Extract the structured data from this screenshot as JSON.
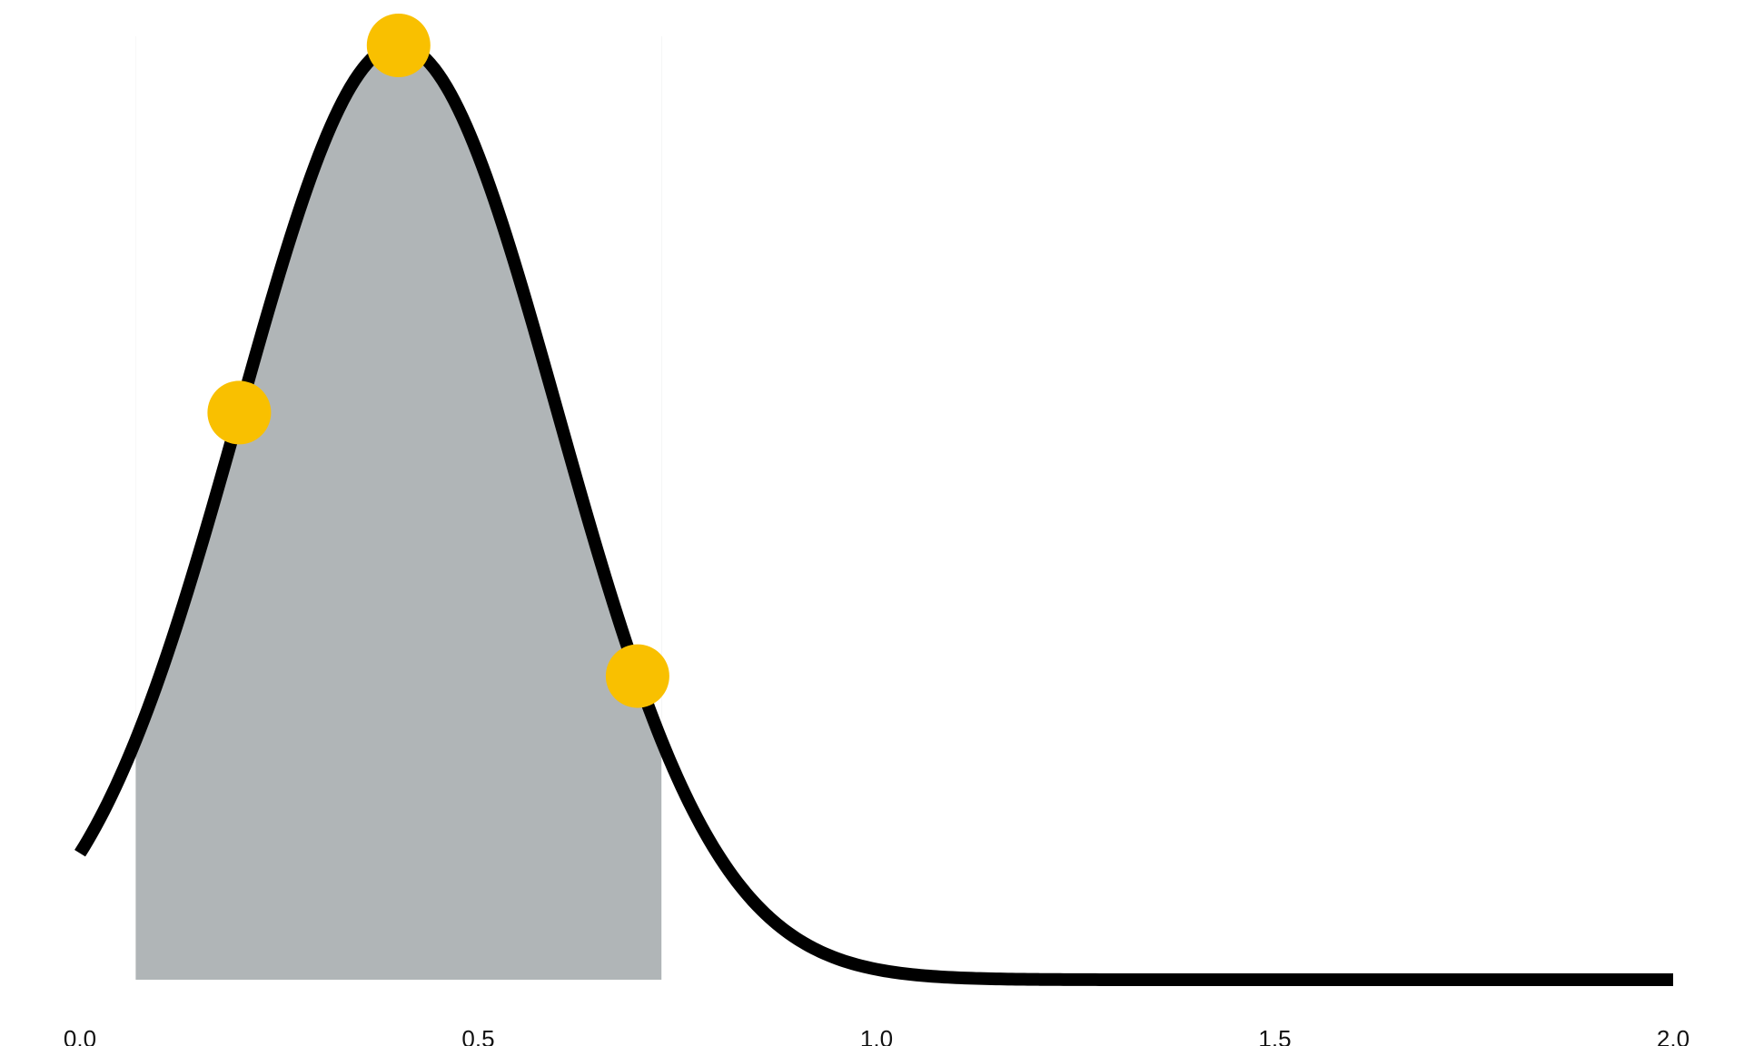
{
  "chart_data": {
    "type": "area",
    "title": "",
    "xlabel": "",
    "ylabel": "",
    "xlim": [
      0.0,
      2.0
    ],
    "ylim": [
      0.0,
      1.0
    ],
    "grid": false,
    "x_ticks": [
      "0.0",
      "0.5",
      "1.0",
      "1.5",
      "2.0"
    ],
    "x_tick_values": [
      0.0,
      0.5,
      1.0,
      1.5,
      2.0
    ],
    "curve": {
      "distribution": "normal",
      "mean": 0.4,
      "sd": 0.2,
      "x_start": 0.0,
      "x_end": 2.0,
      "color": "#000000"
    },
    "shaded_region": {
      "x_start": 0.07,
      "x_end": 0.73,
      "color": "#b0b5b7"
    },
    "points": [
      {
        "x": 0.2,
        "y": 0.607
      },
      {
        "x": 0.4,
        "y": 1.0
      },
      {
        "x": 0.7,
        "y": 0.325
      }
    ],
    "point_color": "#f9c000"
  }
}
